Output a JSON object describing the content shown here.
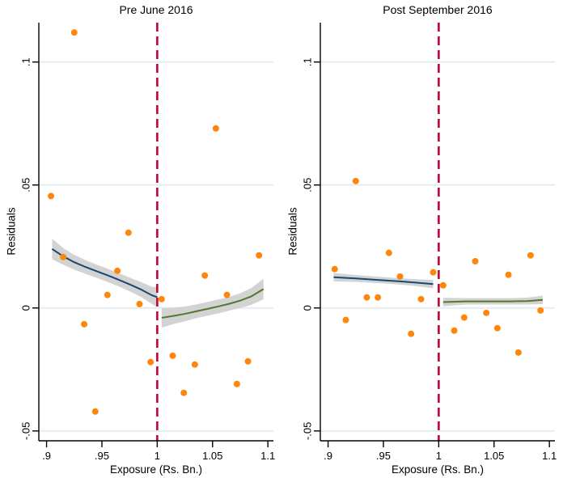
{
  "figure": {
    "background": "#ffffff"
  },
  "colors": {
    "point": "#ff860d",
    "fit_pre": "#1a476f",
    "fit_post": "#52782f",
    "band": "#d3d3d3",
    "cutoff": "#c10534",
    "gridline": "#e9eff0",
    "axis": "#000000"
  },
  "chart_data": [
    {
      "type": "scatter",
      "title": "Pre June 2016",
      "xlabel": "Exposure (Rs. Bn.)",
      "ylabel": "Residuals",
      "xlim": [
        0.893,
        1.105
      ],
      "ylim": [
        -0.054,
        0.116
      ],
      "grid": "horizontal",
      "legend": "none",
      "xticks": [
        {
          "v": 0.9,
          "label": ".9"
        },
        {
          "v": 0.95,
          "label": ".95"
        },
        {
          "v": 1,
          "label": "1"
        },
        {
          "v": 1.05,
          "label": "1.05"
        },
        {
          "v": 1.1,
          "label": "1.1"
        }
      ],
      "yticks": [
        {
          "v": -0.05,
          "label": "-.05"
        },
        {
          "v": 0,
          "label": "0"
        },
        {
          "v": 0.05,
          "label": ".05"
        },
        {
          "v": 0.1,
          "label": ".1"
        }
      ],
      "cutoff_x": 1,
      "points": [
        [
          0.904,
          0.0455
        ],
        [
          0.915,
          0.0207
        ],
        [
          0.925,
          0.112
        ],
        [
          0.934,
          -0.0066
        ],
        [
          0.944,
          -0.0421
        ],
        [
          0.955,
          0.0053
        ],
        [
          0.964,
          0.0151
        ],
        [
          0.974,
          0.0306
        ],
        [
          0.984,
          0.0016
        ],
        [
          0.994,
          -0.022
        ],
        [
          1.004,
          0.0036
        ],
        [
          1.014,
          -0.0194
        ],
        [
          1.024,
          -0.0345
        ],
        [
          1.034,
          -0.023
        ],
        [
          1.043,
          0.0132
        ],
        [
          1.053,
          0.073
        ],
        [
          1.063,
          0.0053
        ],
        [
          1.072,
          -0.0309
        ],
        [
          1.082,
          -0.0217
        ],
        [
          1.092,
          0.0214
        ]
      ],
      "fit_pre": [
        [
          0.905,
          0.024,
          0.0042
        ],
        [
          0.915,
          0.021,
          0.0034
        ],
        [
          0.925,
          0.0186,
          0.003
        ],
        [
          0.935,
          0.0167,
          0.0028
        ],
        [
          0.945,
          0.015,
          0.0027
        ],
        [
          0.955,
          0.0133,
          0.0027
        ],
        [
          0.965,
          0.0115,
          0.0027
        ],
        [
          0.975,
          0.0096,
          0.0028
        ],
        [
          0.985,
          0.0076,
          0.003
        ],
        [
          0.995,
          0.0052,
          0.0035
        ],
        [
          1.0,
          0.0044,
          0.004
        ]
      ],
      "fit_post": [
        [
          1.004,
          -0.004,
          0.004
        ],
        [
          1.015,
          -0.0032,
          0.0033
        ],
        [
          1.025,
          -0.0024,
          0.003
        ],
        [
          1.035,
          -0.0014,
          0.0028
        ],
        [
          1.045,
          -0.0004,
          0.0028
        ],
        [
          1.055,
          0.0006,
          0.0028
        ],
        [
          1.065,
          0.0017,
          0.0028
        ],
        [
          1.075,
          0.003,
          0.003
        ],
        [
          1.085,
          0.0047,
          0.0034
        ],
        [
          1.096,
          0.0077,
          0.0042
        ]
      ]
    },
    {
      "type": "scatter",
      "title": "Post September 2016",
      "xlabel": "Exposure (Rs. Bn.)",
      "ylabel": "Residuals",
      "xlim": [
        0.893,
        1.105
      ],
      "ylim": [
        -0.054,
        0.116
      ],
      "grid": "horizontal",
      "legend": "none",
      "xticks": [
        {
          "v": 0.9,
          "label": ".9"
        },
        {
          "v": 0.95,
          "label": ".95"
        },
        {
          "v": 1,
          "label": "1"
        },
        {
          "v": 1.05,
          "label": "1.05"
        },
        {
          "v": 1.1,
          "label": "1.1"
        }
      ],
      "yticks": [
        {
          "v": -0.05,
          "label": "-.05"
        },
        {
          "v": 0,
          "label": "0"
        },
        {
          "v": 0.05,
          "label": ".05"
        },
        {
          "v": 0.1,
          "label": ".1"
        }
      ],
      "cutoff_x": 1,
      "points": [
        [
          0.906,
          0.0158
        ],
        [
          0.916,
          -0.0049
        ],
        [
          0.925,
          0.0516
        ],
        [
          0.935,
          0.0043
        ],
        [
          0.945,
          0.0043
        ],
        [
          0.955,
          0.0224
        ],
        [
          0.965,
          0.0128
        ],
        [
          0.975,
          -0.0105
        ],
        [
          0.984,
          0.0036
        ],
        [
          0.995,
          0.0145
        ],
        [
          1.004,
          0.0092
        ],
        [
          1.014,
          -0.0092
        ],
        [
          1.023,
          -0.0039
        ],
        [
          1.033,
          0.019
        ],
        [
          1.043,
          -0.002
        ],
        [
          1.053,
          -0.0082
        ],
        [
          1.063,
          0.0135
        ],
        [
          1.072,
          -0.0181
        ],
        [
          1.083,
          0.0214
        ],
        [
          1.092,
          -0.001
        ]
      ],
      "fit_pre": [
        [
          0.905,
          0.0125,
          0.0017
        ],
        [
          0.925,
          0.012,
          0.0014
        ],
        [
          0.945,
          0.0114,
          0.0013
        ],
        [
          0.965,
          0.0108,
          0.0013
        ],
        [
          0.98,
          0.0103,
          0.0014
        ],
        [
          0.995,
          0.0097,
          0.0017
        ]
      ],
      "fit_post": [
        [
          1.004,
          0.0024,
          0.0017
        ],
        [
          1.025,
          0.0027,
          0.0013
        ],
        [
          1.045,
          0.0027,
          0.0013
        ],
        [
          1.065,
          0.0027,
          0.0013
        ],
        [
          1.08,
          0.0028,
          0.0014
        ],
        [
          1.094,
          0.0033,
          0.0017
        ]
      ]
    }
  ]
}
